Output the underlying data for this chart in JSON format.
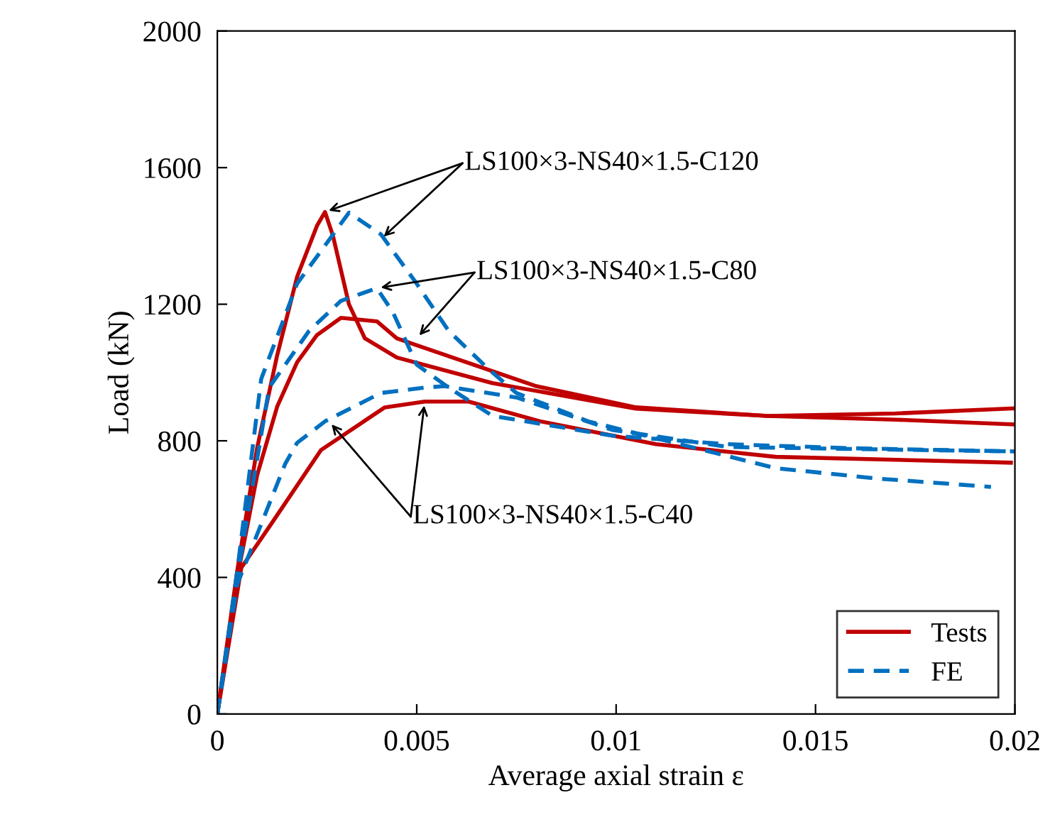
{
  "chart_data": {
    "type": "line",
    "xlabel": "Average axial strain ε",
    "ylabel": "Load (kN)",
    "xlim": [
      0,
      0.02
    ],
    "ylim": [
      0,
      2000
    ],
    "xticks": [
      0,
      0.005,
      0.01,
      0.015,
      0.02
    ],
    "yticks": [
      0,
      400,
      800,
      1200,
      1600,
      2000
    ],
    "grid": false,
    "legend": "bottom right",
    "marker": "none",
    "series": [
      {
        "name": "Tests",
        "color": "#c00000",
        "line_style": "solid",
        "x": [
          0,
          0.0005,
          0.001,
          0.0015,
          0.002,
          0.0025,
          0.0027,
          0.0029,
          0.0033,
          0.0037,
          0.0045,
          0.0069,
          0.0105,
          0.0138,
          0.017,
          0.02
        ],
        "values": [
          0,
          420,
          780,
          1050,
          1280,
          1430,
          1470,
          1400,
          1200,
          1100,
          1044,
          969,
          894,
          873,
          862,
          848
        ]
      },
      {
        "color": "#c00000",
        "line_style": "solid",
        "x": [
          0,
          0.0005,
          0.001,
          0.0015,
          0.002,
          0.0025,
          0.0031,
          0.004,
          0.0045,
          0.005,
          0.006,
          0.008,
          0.0105,
          0.0138,
          0.017,
          0.02
        ],
        "values": [
          0,
          400,
          700,
          900,
          1030,
          1110,
          1160,
          1150,
          1100,
          1080,
          1040,
          960,
          898,
          873,
          880,
          895
        ]
      },
      {
        "color": "#c00000",
        "line_style": "solid",
        "x": [
          0,
          0.0006,
          0.0014,
          0.0026,
          0.0042,
          0.0052,
          0.0063,
          0.0081,
          0.011,
          0.014,
          0.0199
        ],
        "values": [
          0,
          428,
          565,
          773,
          898,
          915,
          915,
          857,
          790,
          753,
          736
        ]
      },
      {
        "name": "FE",
        "color": "#0070c0",
        "line_style": "dashed",
        "x": [
          0,
          0.0005,
          0.0011,
          0.002,
          0.0033,
          0.0041,
          0.005,
          0.0058,
          0.0068,
          0.0075,
          0.0093,
          0.0116,
          0.014,
          0.0165,
          0.0194
        ],
        "values": [
          0,
          420,
          981,
          1260,
          1468,
          1405,
          1260,
          1122,
          1010,
          940,
          857,
          790,
          720,
          690,
          665
        ]
      },
      {
        "color": "#0070c0",
        "line_style": "dashed",
        "x": [
          0,
          0.0005,
          0.0013,
          0.0023,
          0.0031,
          0.004,
          0.0044,
          0.005,
          0.0058,
          0.0069,
          0.0099,
          0.0128,
          0.016,
          0.02
        ],
        "values": [
          0,
          400,
          956,
          1122,
          1210,
          1247,
          1177,
          1023,
          956,
          873,
          815,
          790,
          778,
          769
        ]
      },
      {
        "color": "#0070c0",
        "line_style": "dashed",
        "x": [
          0,
          0.0005,
          0.0017,
          0.002,
          0.0027,
          0.0041,
          0.0052,
          0.0057,
          0.0075,
          0.0099,
          0.0128,
          0.0165,
          0.02
        ],
        "values": [
          0,
          380,
          732,
          794,
          857,
          940,
          956,
          960,
          927,
          832,
          782,
          775,
          769
        ]
      }
    ],
    "annotations": [
      {
        "text": "LS100×3-NS40×1.5-C120",
        "x": 0.0041,
        "y": 1390
      },
      {
        "text": "LS100×3-NS40×1.5-C80",
        "x": 0.005,
        "y": 1100
      },
      {
        "text": "LS100×3-NS40×1.5-C40",
        "x": 0.0028,
        "y": 857
      }
    ]
  }
}
